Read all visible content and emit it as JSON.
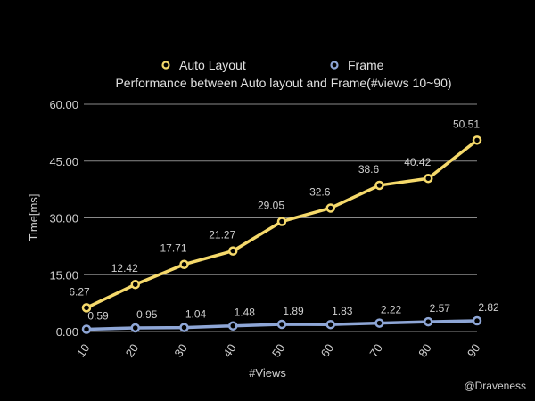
{
  "chart_data": {
    "type": "line",
    "title": "Performance between Auto layout and Frame(#views 10~90)",
    "xlabel": "#Views",
    "ylabel": "Time[ms]",
    "x": [
      10,
      20,
      30,
      40,
      50,
      60,
      70,
      80,
      90
    ],
    "ylim": [
      0,
      60
    ],
    "yticks": [
      "0.00",
      "15.00",
      "30.00",
      "45.00",
      "60.00"
    ],
    "grid": true,
    "legend_position": "top",
    "series": [
      {
        "name": "Auto Layout",
        "color": "#f5d96b",
        "values": [
          6.27,
          12.42,
          17.71,
          21.27,
          29.05,
          32.6,
          38.6,
          40.42,
          50.51
        ],
        "labels": [
          "6.27",
          "12.42",
          "17.71",
          "21.27",
          "29.05",
          "32.6",
          "38.6",
          "40.42",
          "50.51"
        ]
      },
      {
        "name": "Frame",
        "color": "#8ea6d6",
        "values": [
          0.59,
          0.95,
          1.04,
          1.48,
          1.89,
          1.83,
          2.22,
          2.57,
          2.82
        ],
        "labels": [
          "0.59",
          "0.95",
          "1.04",
          "1.48",
          "1.89",
          "1.83",
          "2.22",
          "2.57",
          "2.82"
        ]
      }
    ]
  },
  "watermark": "@Draveness"
}
